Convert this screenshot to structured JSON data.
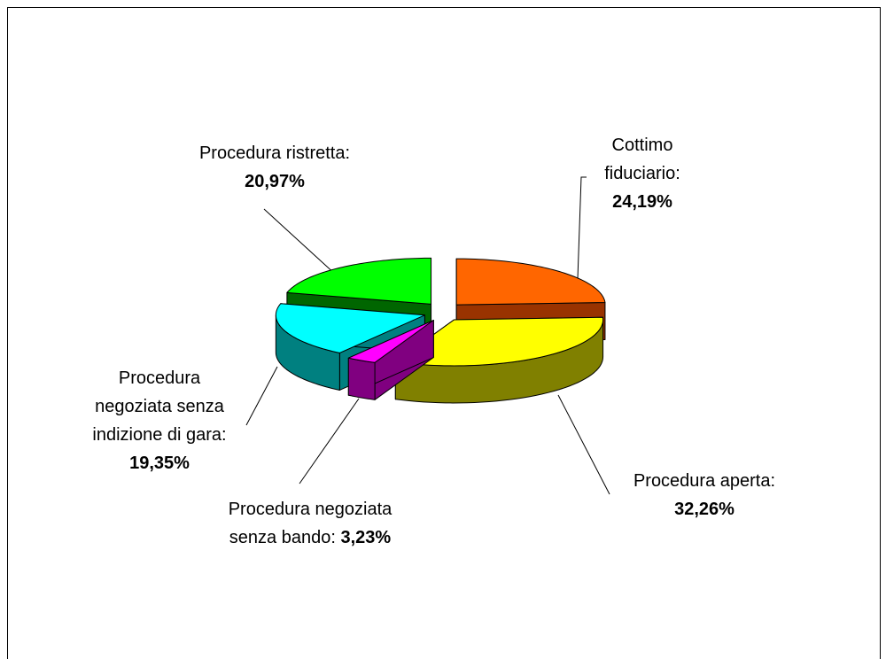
{
  "chart_data": {
    "type": "pie3d",
    "categories": [
      "Cottimo fiduciario:",
      "Procedura aperta:",
      "Procedura negoziata senza bando:",
      "Procedura negoziata senza indizione di gara:",
      "Procedura ristretta:"
    ],
    "values": [
      24.19,
      32.26,
      3.23,
      19.35,
      20.97
    ],
    "value_labels": [
      "24,19%",
      "32,26%",
      "3,23%",
      "19,35%",
      "20,97%"
    ],
    "colors": [
      "#FF6600",
      "#FFFF00",
      "#FF00FF",
      "#00FFFF",
      "#00FF00"
    ],
    "side_colors": [
      "#993300",
      "#808000",
      "#800080",
      "#008080",
      "#006600"
    ]
  }
}
